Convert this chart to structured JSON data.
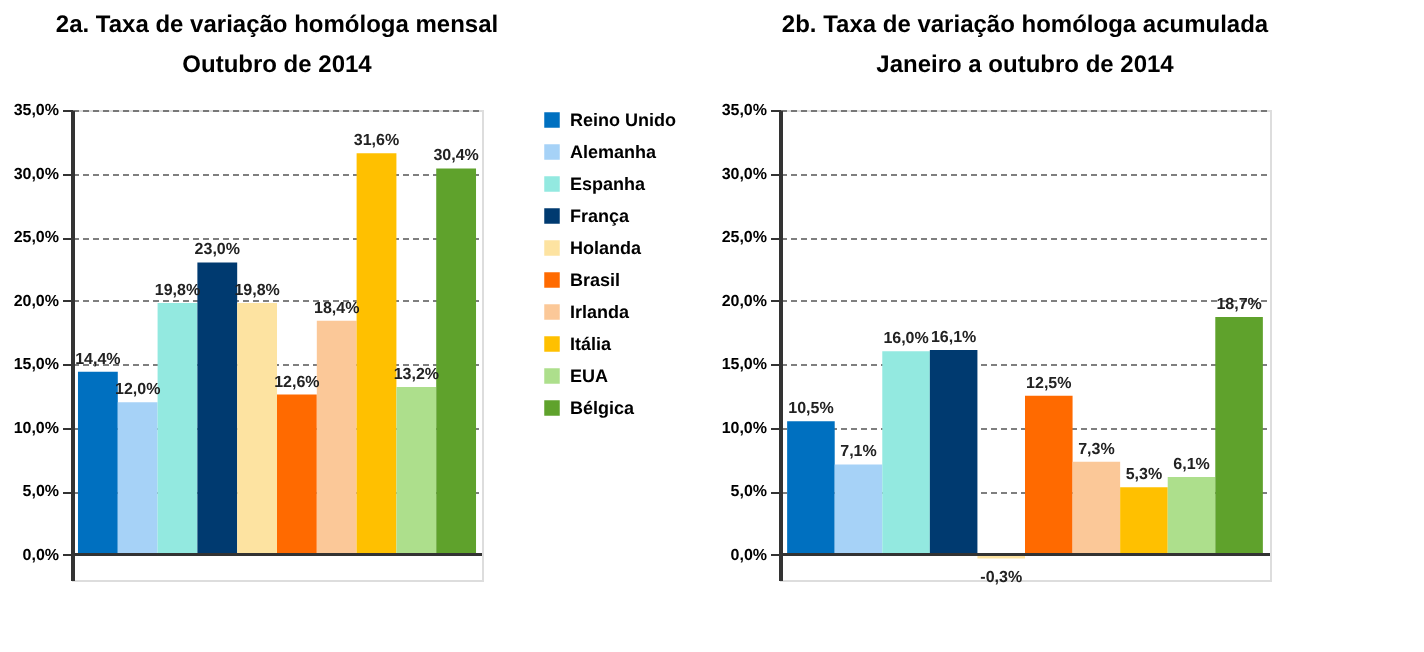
{
  "chart_data": [
    {
      "type": "bar",
      "title": "2a. Taxa de variação homóloga mensal",
      "subtitle": "Outubro de 2014",
      "categories": [
        null
      ],
      "series": [
        {
          "name": "Reino Unido",
          "color": "#0070c0",
          "values": [
            14.4
          ],
          "value_labels": [
            "14,4%"
          ]
        },
        {
          "name": "Alemanha",
          "color": "#a6d2f7",
          "values": [
            12.0
          ],
          "value_labels": [
            "12,0%"
          ]
        },
        {
          "name": "Espanha",
          "color": "#93e9e0",
          "values": [
            19.8
          ],
          "value_labels": [
            "19,8%"
          ]
        },
        {
          "name": "França",
          "color": "#003a70",
          "values": [
            23.0
          ],
          "value_labels": [
            "23,0%"
          ]
        },
        {
          "name": "Holanda",
          "color": "#fde3a1",
          "values": [
            19.8
          ],
          "value_labels": [
            "19,8%"
          ]
        },
        {
          "name": "Brasil",
          "color": "#ff6a00",
          "values": [
            12.6
          ],
          "value_labels": [
            "12,6%"
          ]
        },
        {
          "name": "Irlanda",
          "color": "#fbc898",
          "values": [
            18.4
          ],
          "value_labels": [
            "18,4%"
          ]
        },
        {
          "name": "Itália",
          "color": "#ffc000",
          "values": [
            31.6
          ],
          "value_labels": [
            "31,6%"
          ]
        },
        {
          "name": "EUA",
          "color": "#addf8c",
          "values": [
            13.2
          ],
          "value_labels": [
            "13,2%"
          ]
        },
        {
          "name": "Bélgica",
          "color": "#5fa22c",
          "values": [
            30.4
          ],
          "value_labels": [
            "30,4%"
          ]
        }
      ],
      "ylim": [
        -2,
        35
      ],
      "yticks": [
        {
          "value": 0,
          "label": "0,0%"
        },
        {
          "value": 5,
          "label": "5,0%"
        },
        {
          "value": 10,
          "label": "10,0%"
        },
        {
          "value": 15,
          "label": "15,0%"
        },
        {
          "value": 20,
          "label": "20,0%"
        },
        {
          "value": 25,
          "label": "25,0%"
        },
        {
          "value": 30,
          "label": "30,0%"
        },
        {
          "value": 35,
          "label": "35,0%"
        }
      ],
      "grid": "y",
      "legend": "right",
      "tick_labels": "y"
    },
    {
      "type": "bar",
      "title": "2b. Taxa de variação homóloga acumulada",
      "subtitle": "Janeiro a outubro de 2014",
      "categories": [
        null
      ],
      "series": [
        {
          "color": "#0070c0",
          "values": [
            10.5
          ],
          "value_labels": [
            "10,5%"
          ]
        },
        {
          "color": "#a6d2f7",
          "values": [
            7.1
          ],
          "value_labels": [
            "7,1%"
          ]
        },
        {
          "color": "#93e9e0",
          "values": [
            16.0
          ],
          "value_labels": [
            "16,0%"
          ]
        },
        {
          "color": "#003a70",
          "values": [
            16.1
          ],
          "value_labels": [
            "16,1%"
          ]
        },
        {
          "color": "#fde3a1",
          "values": [
            -0.3
          ],
          "value_labels": [
            "-0,3%"
          ]
        },
        {
          "color": "#ff6a00",
          "values": [
            12.5
          ],
          "value_labels": [
            "12,5%"
          ]
        },
        {
          "color": "#fbc898",
          "values": [
            7.3
          ],
          "value_labels": [
            "7,3%"
          ]
        },
        {
          "color": "#ffc000",
          "values": [
            5.3
          ],
          "value_labels": [
            "5,3%"
          ]
        },
        {
          "color": "#addf8c",
          "values": [
            6.1
          ],
          "value_labels": [
            "6,1%"
          ]
        },
        {
          "color": "#5fa22c",
          "values": [
            18.7
          ],
          "value_labels": [
            "18,7%"
          ]
        }
      ],
      "ylim": [
        -2,
        35
      ],
      "yticks": [
        {
          "value": 0,
          "label": "0,0%"
        },
        {
          "value": 5,
          "label": "5,0%"
        },
        {
          "value": 10,
          "label": "10,0%"
        },
        {
          "value": 15,
          "label": "15,0%"
        },
        {
          "value": 20,
          "label": "20,0%"
        },
        {
          "value": 25,
          "label": "25,0%"
        },
        {
          "value": 30,
          "label": "30,0%"
        },
        {
          "value": 35,
          "label": "35,0%"
        }
      ],
      "grid": "y",
      "tick_labels": "y"
    }
  ]
}
